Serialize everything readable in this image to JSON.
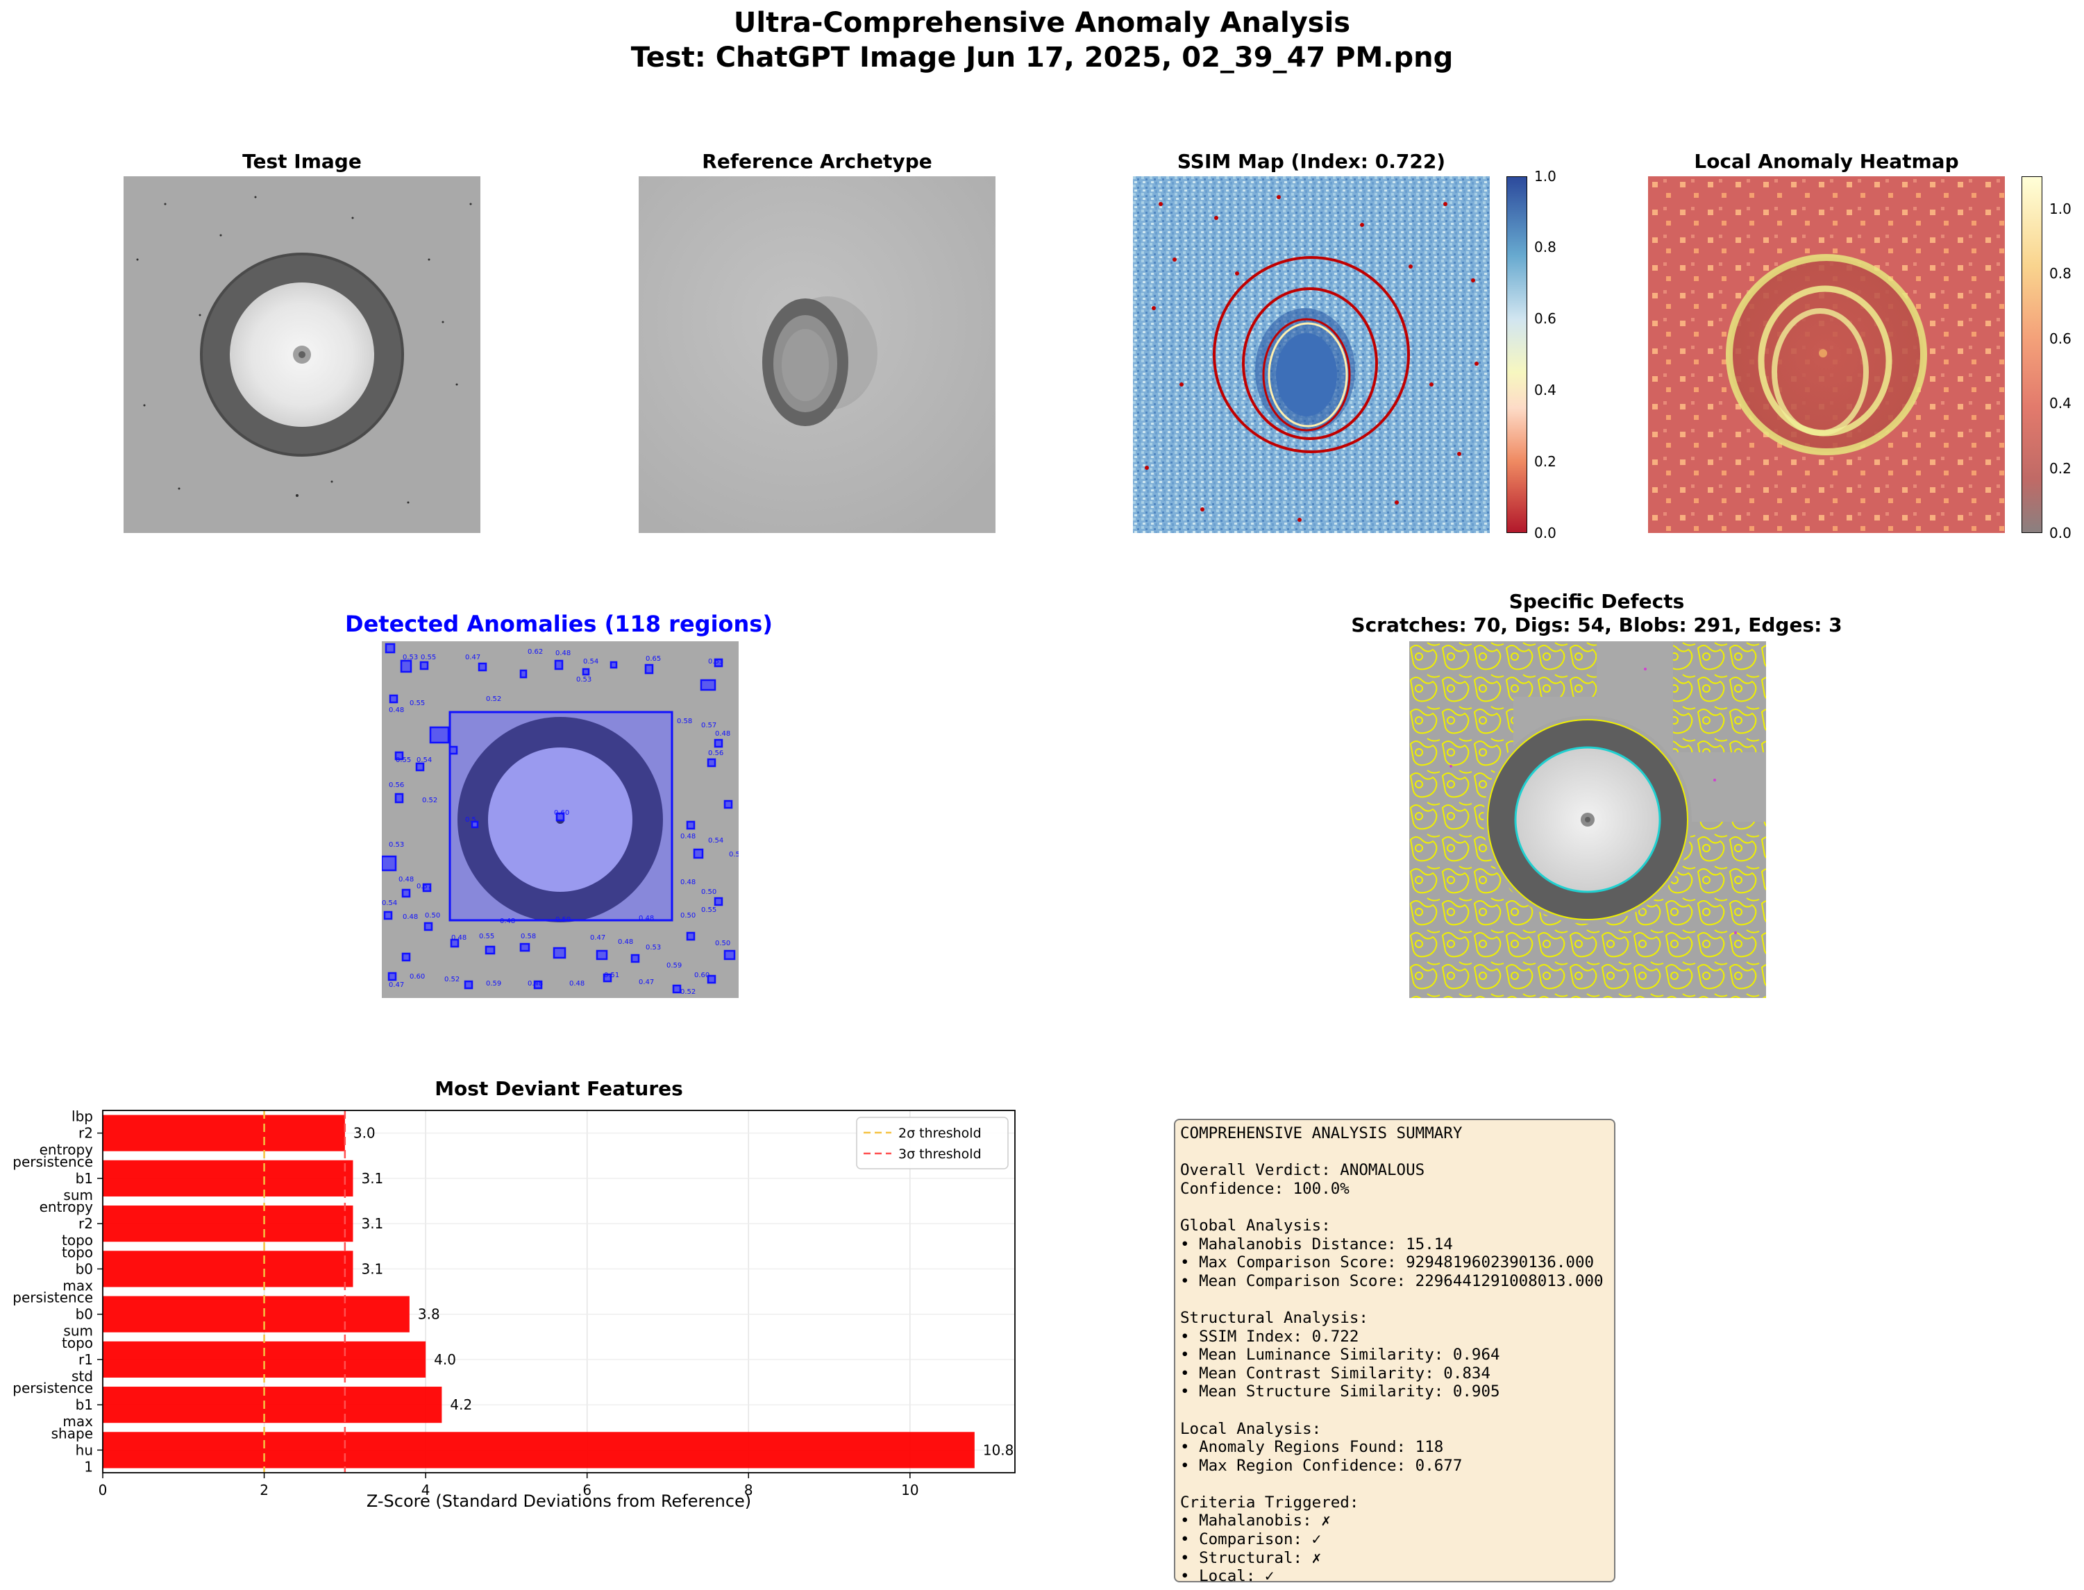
{
  "figure": {
    "title_line1": "Ultra-Comprehensive Anomaly Analysis",
    "title_line2": "Test: ChatGPT Image Jun 17, 2025, 02_39_47 PM.png"
  },
  "panels": {
    "test_image": {
      "title": "Test Image"
    },
    "reference": {
      "title": "Reference Archetype"
    },
    "ssim": {
      "title": "SSIM Map (Index: 0.722)",
      "colorbar_ticks": [
        "0.0",
        "0.2",
        "0.4",
        "0.6",
        "0.8",
        "1.0"
      ]
    },
    "heatmap": {
      "title": "Local Anomaly Heatmap",
      "colorbar_ticks": [
        "0.0",
        "0.2",
        "0.4",
        "0.6",
        "0.8",
        "1.0"
      ]
    },
    "detected": {
      "title": "Detected Anomalies (118 regions)",
      "title_color": "#0000ff"
    },
    "defects": {
      "title_line1": "Specific Defects",
      "title_line2": "Scratches: 70, Digs: 54, Blobs: 291, Edges: 3"
    }
  },
  "chart_data": {
    "type": "bar",
    "orientation": "horizontal",
    "title": "Most Deviant Features",
    "xlabel": "Z-Score (Standard Deviations from Reference)",
    "xlim": [
      0,
      11.3
    ],
    "xticks": [
      "0",
      "2",
      "4",
      "6",
      "8",
      "10"
    ],
    "grid": true,
    "bar_color": "#ff0000",
    "categories": [
      [
        "shape",
        "hu",
        "1"
      ],
      [
        "persistence",
        "b1",
        "max"
      ],
      [
        "topo",
        "r1",
        "std"
      ],
      [
        "persistence",
        "b0",
        "sum"
      ],
      [
        "topo",
        "b0",
        "max"
      ],
      [
        "entropy",
        "r2",
        "topo"
      ],
      [
        "persistence",
        "b1",
        "sum"
      ],
      [
        "lbp",
        "r2",
        "entropy"
      ]
    ],
    "values": [
      10.8,
      4.2,
      4.0,
      3.8,
      3.1,
      3.1,
      3.1,
      3.0
    ],
    "value_labels": [
      "10.8",
      "4.2",
      "4.0",
      "3.8",
      "3.1",
      "3.1",
      "3.1",
      "3.0"
    ],
    "thresholds": [
      {
        "name": "2σ threshold",
        "value": 2,
        "color": "#f5c242"
      },
      {
        "name": "3σ threshold",
        "value": 3,
        "color": "#ff5050"
      }
    ],
    "legend": {
      "placement": "upper right",
      "entries": [
        "2σ threshold",
        "3σ threshold"
      ]
    }
  },
  "summary": {
    "lines": [
      "COMPREHENSIVE ANALYSIS SUMMARY",
      "",
      "Overall Verdict: ANOMALOUS",
      "Confidence: 100.0%",
      "",
      "Global Analysis:",
      "• Mahalanobis Distance: 15.14",
      "• Max Comparison Score: 9294819602390136.000",
      "• Mean Comparison Score: 2296441291008013.000",
      "",
      "Structural Analysis:",
      "• SSIM Index: 0.722",
      "• Mean Luminance Similarity: 0.964",
      "• Mean Contrast Similarity: 0.834",
      "• Mean Structure Similarity: 0.905",
      "",
      "Local Analysis:",
      "• Anomaly Regions Found: 118",
      "• Max Region Confidence: 0.677",
      "",
      "Criteria Triggered:",
      "• Mahalanobis: ✗",
      "• Comparison: ✓",
      "• Structural: ✗",
      "• Local: ✓"
    ]
  },
  "colors": {
    "detected_box": "#1010ff",
    "defect_outline": "#f0f000",
    "defect_edge": "#20d0d0"
  }
}
